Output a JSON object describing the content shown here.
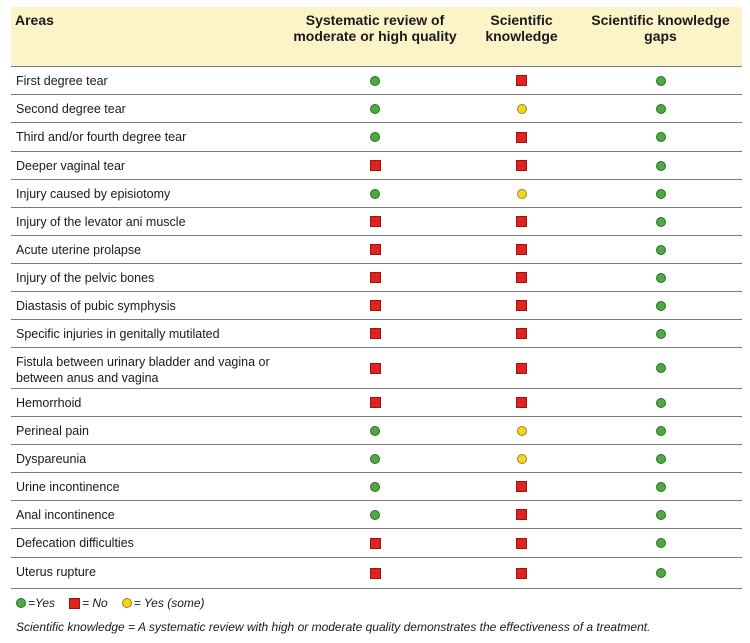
{
  "headers": {
    "areas": "Areas",
    "col1": "Systematic review of moderate or high quality",
    "col2": "Scientific knowledge",
    "col3": "Scientific knowledge gaps"
  },
  "rows": [
    {
      "area": "First degree tear",
      "v": [
        "yes",
        "no",
        "yes"
      ]
    },
    {
      "area": "Second degree tear",
      "v": [
        "yes",
        "some",
        "yes"
      ]
    },
    {
      "area": "Third and/or fourth degree tear",
      "v": [
        "yes",
        "no",
        "yes"
      ]
    },
    {
      "area": "Deeper vaginal tear",
      "v": [
        "no",
        "no",
        "yes"
      ]
    },
    {
      "area": "Injury caused by episiotomy",
      "v": [
        "yes",
        "some",
        "yes"
      ]
    },
    {
      "area": "Injury of the levator ani muscle",
      "v": [
        "no",
        "no",
        "yes"
      ]
    },
    {
      "area": "Acute uterine prolapse",
      "v": [
        "no",
        "no",
        "yes"
      ]
    },
    {
      "area": "Injury of the pelvic bones",
      "v": [
        "no",
        "no",
        "yes"
      ]
    },
    {
      "area": "Diastasis of pubic symphysis",
      "v": [
        "no",
        "no",
        "yes"
      ]
    },
    {
      "area": "Specific injuries in genitally mutilated",
      "v": [
        "no",
        "no",
        "yes"
      ]
    },
    {
      "area": "Fistula between urinary bladder and vagina or between anus and vagina",
      "v": [
        "no",
        "no",
        "yes"
      ]
    },
    {
      "area": "Hemorrhoid",
      "v": [
        "no",
        "no",
        "yes"
      ]
    },
    {
      "area": "Perineal pain",
      "v": [
        "yes",
        "some",
        "yes"
      ]
    },
    {
      "area": "Dyspareunia",
      "v": [
        "yes",
        "some",
        "yes"
      ]
    },
    {
      "area": "Urine incontinence",
      "v": [
        "yes",
        "no",
        "yes"
      ]
    },
    {
      "area": "Anal incontinence",
      "v": [
        "yes",
        "no",
        "yes"
      ]
    },
    {
      "area": "Defecation difficulties",
      "v": [
        "no",
        "no",
        "yes"
      ]
    },
    {
      "area": "Uterus rupture",
      "v": [
        "no",
        "no",
        "yes"
      ]
    }
  ],
  "legend": {
    "yes": "=Yes",
    "no": "= No",
    "some": "= Yes (some)"
  },
  "footnote": "Scientific knowledge = A systematic review with high or moderate quality demonstrates the effectiveness of a treatment.",
  "colors": {
    "header_bg": "#fdf3c9",
    "yes": "#4ea843",
    "no": "#e0231f",
    "some": "#f7d51e"
  },
  "symbols": {
    "yes": "green-circle-icon",
    "no": "red-square-icon",
    "some": "yellow-circle-icon"
  }
}
